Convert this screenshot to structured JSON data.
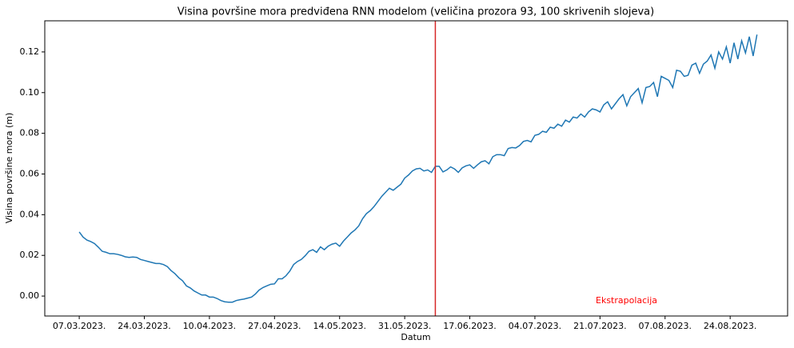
{
  "chart_data": {
    "type": "line",
    "title": "Visina površine mora predviđena RNN modelom (veličina prozora 93, 100 skrivenih slojeva)",
    "x_label": "Datum",
    "y_label": "Visina površine mora (m)",
    "annotation": "Ekstrapolacija",
    "annotation_color": "#ff0000",
    "vline": "2023-06-08",
    "vline_color": "#d62728",
    "color": "#1f77b4",
    "x": [
      "2023-03-07",
      "2023-03-08",
      "2023-03-09",
      "2023-03-10",
      "2023-03-11",
      "2023-03-12",
      "2023-03-13",
      "2023-03-14",
      "2023-03-15",
      "2023-03-16",
      "2023-03-17",
      "2023-03-18",
      "2023-03-19",
      "2023-03-20",
      "2023-03-21",
      "2023-03-22",
      "2023-03-23",
      "2023-03-24",
      "2023-03-25",
      "2023-03-26",
      "2023-03-27",
      "2023-03-28",
      "2023-03-29",
      "2023-03-30",
      "2023-03-31",
      "2023-04-01",
      "2023-04-02",
      "2023-04-03",
      "2023-04-04",
      "2023-04-05",
      "2023-04-06",
      "2023-04-07",
      "2023-04-08",
      "2023-04-09",
      "2023-04-10",
      "2023-04-11",
      "2023-04-12",
      "2023-04-13",
      "2023-04-14",
      "2023-04-15",
      "2023-04-16",
      "2023-04-17",
      "2023-04-18",
      "2023-04-19",
      "2023-04-20",
      "2023-04-21",
      "2023-04-22",
      "2023-04-23",
      "2023-04-24",
      "2023-04-25",
      "2023-04-26",
      "2023-04-27",
      "2023-04-28",
      "2023-04-29",
      "2023-04-30",
      "2023-05-01",
      "2023-05-02",
      "2023-05-03",
      "2023-05-04",
      "2023-05-05",
      "2023-05-06",
      "2023-05-07",
      "2023-05-08",
      "2023-05-09",
      "2023-05-10",
      "2023-05-11",
      "2023-05-12",
      "2023-05-13",
      "2023-05-14",
      "2023-05-15",
      "2023-05-16",
      "2023-05-17",
      "2023-05-18",
      "2023-05-19",
      "2023-05-20",
      "2023-05-21",
      "2023-05-22",
      "2023-05-23",
      "2023-05-24",
      "2023-05-25",
      "2023-05-26",
      "2023-05-27",
      "2023-05-28",
      "2023-05-29",
      "2023-05-30",
      "2023-05-31",
      "2023-06-01",
      "2023-06-02",
      "2023-06-03",
      "2023-06-04",
      "2023-06-05",
      "2023-06-06",
      "2023-06-07",
      "2023-06-08",
      "2023-06-09",
      "2023-06-10",
      "2023-06-11",
      "2023-06-12",
      "2023-06-13",
      "2023-06-14",
      "2023-06-15",
      "2023-06-16",
      "2023-06-17",
      "2023-06-18",
      "2023-06-19",
      "2023-06-20",
      "2023-06-21",
      "2023-06-22",
      "2023-06-23",
      "2023-06-24",
      "2023-06-25",
      "2023-06-26",
      "2023-06-27",
      "2023-06-28",
      "2023-06-29",
      "2023-06-30",
      "2023-07-01",
      "2023-07-02",
      "2023-07-03",
      "2023-07-04",
      "2023-07-05",
      "2023-07-06",
      "2023-07-07",
      "2023-07-08",
      "2023-07-09",
      "2023-07-10",
      "2023-07-11",
      "2023-07-12",
      "2023-07-13",
      "2023-07-14",
      "2023-07-15",
      "2023-07-16",
      "2023-07-17",
      "2023-07-18",
      "2023-07-19",
      "2023-07-20",
      "2023-07-21",
      "2023-07-22",
      "2023-07-23",
      "2023-07-24",
      "2023-07-25",
      "2023-07-26",
      "2023-07-27",
      "2023-07-28",
      "2023-07-29",
      "2023-07-30",
      "2023-07-31",
      "2023-08-01",
      "2023-08-02",
      "2023-08-03",
      "2023-08-04",
      "2023-08-05",
      "2023-08-06",
      "2023-08-07",
      "2023-08-08",
      "2023-08-09",
      "2023-08-10",
      "2023-08-11",
      "2023-08-12",
      "2023-08-13",
      "2023-08-14",
      "2023-08-15",
      "2023-08-16",
      "2023-08-17",
      "2023-08-18",
      "2023-08-19",
      "2023-08-20",
      "2023-08-21",
      "2023-08-22",
      "2023-08-23",
      "2023-08-24",
      "2023-08-25",
      "2023-08-26",
      "2023-08-27",
      "2023-08-28",
      "2023-08-29",
      "2023-08-30",
      "2023-08-31"
    ],
    "values": [
      0.0315,
      0.029,
      0.0275,
      0.0268,
      0.0258,
      0.024,
      0.022,
      0.0215,
      0.0208,
      0.0208,
      0.0205,
      0.02,
      0.0193,
      0.019,
      0.0192,
      0.019,
      0.018,
      0.0175,
      0.017,
      0.0165,
      0.016,
      0.016,
      0.0155,
      0.0145,
      0.0125,
      0.011,
      0.009,
      0.0075,
      0.005,
      0.004,
      0.0025,
      0.0015,
      0.0005,
      0.0005,
      -0.0005,
      -0.0005,
      -0.0012,
      -0.0022,
      -0.0028,
      -0.003,
      -0.003,
      -0.0022,
      -0.0018,
      -0.0015,
      -0.001,
      -0.0005,
      0.001,
      0.003,
      0.0042,
      0.005,
      0.0058,
      0.006,
      0.0085,
      0.0085,
      0.01,
      0.0123,
      0.0155,
      0.017,
      0.018,
      0.0198,
      0.022,
      0.0228,
      0.0215,
      0.0242,
      0.0228,
      0.0245,
      0.0255,
      0.026,
      0.0245,
      0.027,
      0.029,
      0.031,
      0.0325,
      0.0345,
      0.038,
      0.0405,
      0.042,
      0.044,
      0.0465,
      0.049,
      0.051,
      0.053,
      0.052,
      0.0535,
      0.055,
      0.058,
      0.0595,
      0.0615,
      0.0625,
      0.0628,
      0.0615,
      0.062,
      0.0608,
      0.0638,
      0.0638,
      0.061,
      0.062,
      0.0635,
      0.0625,
      0.0608,
      0.063,
      0.064,
      0.0645,
      0.0628,
      0.0645,
      0.066,
      0.0665,
      0.065,
      0.0685,
      0.0695,
      0.0695,
      0.069,
      0.0725,
      0.073,
      0.0728,
      0.074,
      0.076,
      0.0765,
      0.0758,
      0.079,
      0.0795,
      0.081,
      0.0805,
      0.083,
      0.0825,
      0.0845,
      0.0835,
      0.0865,
      0.0855,
      0.088,
      0.0875,
      0.0895,
      0.088,
      0.0905,
      0.092,
      0.0915,
      0.0905,
      0.094,
      0.0955,
      0.092,
      0.0945,
      0.097,
      0.099,
      0.0935,
      0.098,
      0.1,
      0.102,
      0.095,
      0.1025,
      0.103,
      0.105,
      0.098,
      0.108,
      0.107,
      0.106,
      0.1025,
      0.111,
      0.1105,
      0.108,
      0.1085,
      0.1135,
      0.1145,
      0.1095,
      0.114,
      0.1155,
      0.1185,
      0.112,
      0.12,
      0.1165,
      0.1225,
      0.1145,
      0.1245,
      0.1165,
      0.1255,
      0.1195,
      0.1275,
      0.118,
      0.1285
    ],
    "xlim": [
      "2023-02-26",
      "2023-09-08"
    ],
    "xticks": [
      {
        "value": "2023-03-07",
        "label": "07.03.2023."
      },
      {
        "value": "2023-03-24",
        "label": "24.03.2023."
      },
      {
        "value": "2023-04-10",
        "label": "10.04.2023."
      },
      {
        "value": "2023-04-27",
        "label": "27.04.2023."
      },
      {
        "value": "2023-05-14",
        "label": "14.05.2023."
      },
      {
        "value": "2023-05-31",
        "label": "31.05.2023."
      },
      {
        "value": "2023-06-17",
        "label": "17.06.2023."
      },
      {
        "value": "2023-07-04",
        "label": "04.07.2023."
      },
      {
        "value": "2023-07-21",
        "label": "21.07.2023."
      },
      {
        "value": "2023-08-07",
        "label": "07.08.2023."
      },
      {
        "value": "2023-08-24",
        "label": "24.08.2023."
      }
    ],
    "ylim": [
      -0.0098,
      0.1353
    ],
    "yticks": [
      {
        "value": 0,
        "label": "0.00"
      },
      {
        "value": 0.02,
        "label": "0.02"
      },
      {
        "value": 0.04,
        "label": "0.04"
      },
      {
        "value": 0.06,
        "label": "0.06"
      },
      {
        "value": 0.08,
        "label": "0.08"
      },
      {
        "value": 0.1,
        "label": "0.10"
      },
      {
        "value": 0.12,
        "label": "0.12"
      }
    ]
  }
}
